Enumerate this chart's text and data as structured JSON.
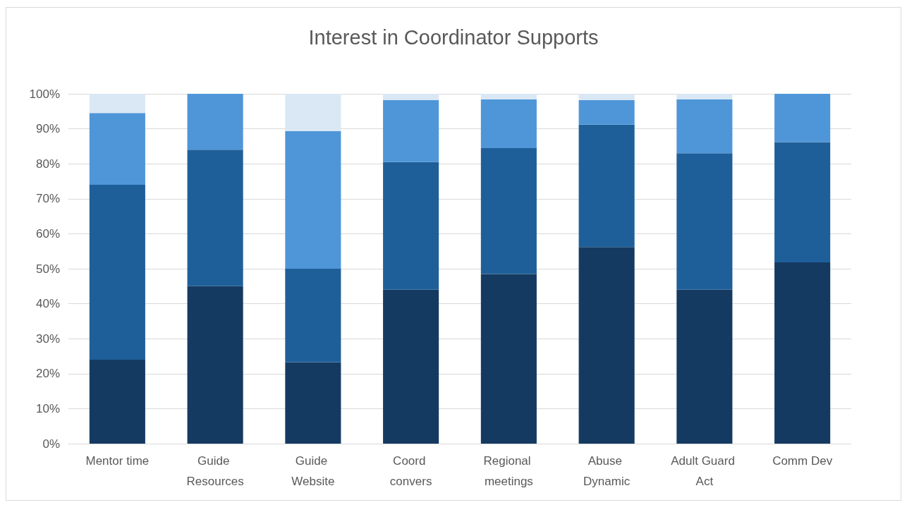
{
  "chart_data": {
    "type": "bar",
    "title": "Interest in Coordinator Supports",
    "stacked": true,
    "categories": [
      "Mentor time",
      "Guide Resources",
      "Guide Website",
      "Coord convers",
      "Regional meetings",
      "Abuse Dynamic",
      "Adult Guard Act",
      "Comm Dev"
    ],
    "series": [
      {
        "color": "#153a61",
        "values": [
          24,
          45,
          23.3,
          44,
          48.5,
          56.2,
          44,
          51.8
        ]
      },
      {
        "color": "#1f5f99",
        "values": [
          50,
          39,
          26.7,
          36.5,
          36,
          35,
          39,
          34.4
        ]
      },
      {
        "color": "#4f96d8",
        "values": [
          20.5,
          16,
          39.3,
          17.7,
          13.9,
          7,
          15.4,
          13.8
        ]
      },
      {
        "color": "#dae8f5",
        "values": [
          5.5,
          0,
          10.7,
          1.8,
          1.6,
          1.8,
          1.6,
          0
        ]
      }
    ],
    "ylim": [
      0,
      100
    ],
    "yticks": [
      {
        "value": 0,
        "label": "0%"
      },
      {
        "value": 10,
        "label": "10%"
      },
      {
        "value": 20,
        "label": "20%"
      },
      {
        "value": 30,
        "label": "30%"
      },
      {
        "value": 40,
        "label": "40%"
      },
      {
        "value": 50,
        "label": "50%"
      },
      {
        "value": 60,
        "label": "60%"
      },
      {
        "value": 70,
        "label": "70%"
      },
      {
        "value": 80,
        "label": "80%"
      },
      {
        "value": 90,
        "label": "90%"
      },
      {
        "value": 100,
        "label": "100%"
      }
    ],
    "grid": "y"
  }
}
